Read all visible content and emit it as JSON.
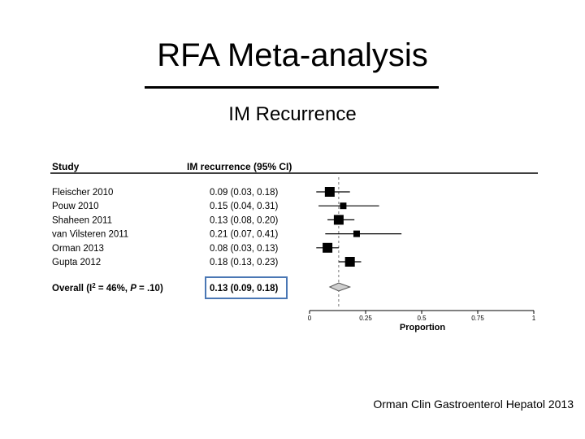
{
  "slide": {
    "title": "RFA Meta-analysis",
    "subtitle": "IM Recurrence",
    "citation": "Orman Clin Gastroenterol Hepatol 2013"
  },
  "chart_data": {
    "type": "forest",
    "header_study": "Study",
    "header_ci": "IM recurrence (95% CI)",
    "xlabel": "Proportion",
    "xlim": [
      0,
      1
    ],
    "ticks": [
      0,
      0.25,
      0.5,
      0.75,
      1
    ],
    "tick_labels": [
      "0",
      "0.25",
      "0.5",
      "0.75",
      "1"
    ],
    "reference_line": 0.13,
    "studies": [
      {
        "name": "Fleischer 2010",
        "ci_text": "0.09 (0.03, 0.18)",
        "est": 0.09,
        "lo": 0.03,
        "hi": 0.18,
        "weight": "large"
      },
      {
        "name": "Pouw 2010",
        "ci_text": "0.15 (0.04, 0.31)",
        "est": 0.15,
        "lo": 0.04,
        "hi": 0.31,
        "weight": "small"
      },
      {
        "name": "Shaheen 2011",
        "ci_text": "0.13 (0.08, 0.20)",
        "est": 0.13,
        "lo": 0.08,
        "hi": 0.2,
        "weight": "large"
      },
      {
        "name": "van Vilsteren 2011",
        "ci_text": "0.21 (0.07, 0.41)",
        "est": 0.21,
        "lo": 0.07,
        "hi": 0.41,
        "weight": "small"
      },
      {
        "name": "Orman 2013",
        "ci_text": "0.08 (0.03, 0.13)",
        "est": 0.08,
        "lo": 0.03,
        "hi": 0.13,
        "weight": "large"
      },
      {
        "name": "Gupta 2012",
        "ci_text": "0.18 (0.13, 0.23)",
        "est": 0.18,
        "lo": 0.13,
        "hi": 0.23,
        "weight": "large"
      }
    ],
    "overall": {
      "label_prefix": "Overall (I",
      "label_sup": "2",
      "label_mid": " = 46%, ",
      "label_p": "P",
      "label_suffix": " = .10)",
      "ci_text": "0.13 (0.09, 0.18)",
      "est": 0.13,
      "lo": 0.09,
      "hi": 0.18
    },
    "highlight_color": "#4a77b4"
  }
}
